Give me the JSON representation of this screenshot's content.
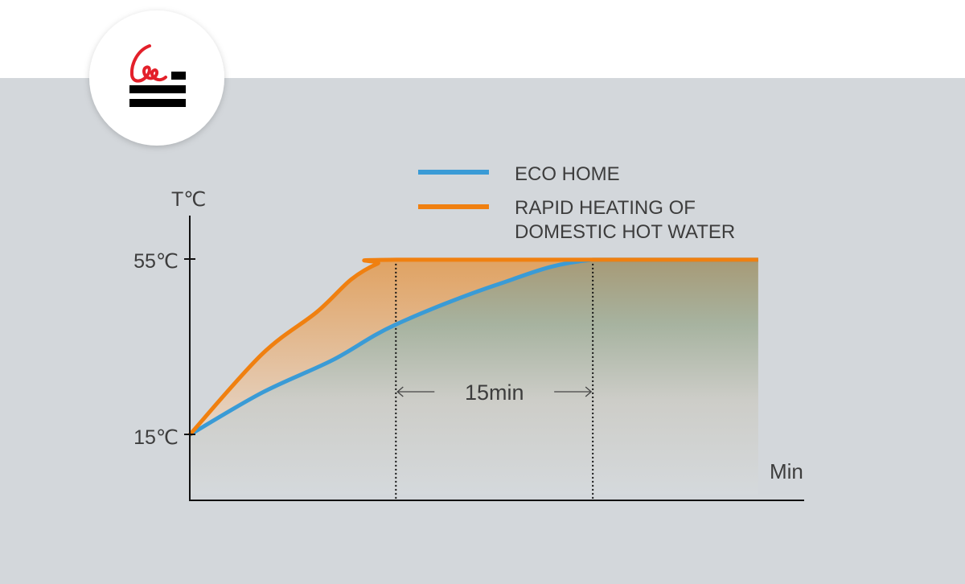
{
  "chart_data": {
    "type": "line",
    "xlabel": "Min",
    "ylabel": "T℃",
    "y_ticks": [
      "15℃",
      "55℃"
    ],
    "y_tick_values": [
      15,
      55
    ],
    "ylim": [
      0,
      57
    ],
    "xlim": [
      0,
      46.8
    ],
    "grid": false,
    "legend_position": "top-right",
    "series": [
      {
        "name": "ECO HOME",
        "color": "#3a9bd6",
        "points": [
          [
            0,
            15
          ],
          [
            5.5,
            24.6
          ],
          [
            10.9,
            32.1
          ],
          [
            15.7,
            40.2
          ],
          [
            23.5,
            49.4
          ],
          [
            30.7,
            55
          ],
          [
            43.3,
            55
          ]
        ]
      },
      {
        "name": "RAPID HEATING OF DOMESTIC HOT WATER",
        "name_lines": [
          "RAPID HEATING OF",
          "DOMESTIC HOT WATER"
        ],
        "color": "#f08010",
        "points": [
          [
            0,
            15
          ],
          [
            5.5,
            33.4
          ],
          [
            9.7,
            43.1
          ],
          [
            12.3,
            50.5
          ],
          [
            14.3,
            54.1
          ],
          [
            15.7,
            55
          ],
          [
            43.3,
            55
          ]
        ]
      }
    ],
    "annotation": {
      "text": "15min",
      "from_x": 15.7,
      "to_x": 30.7
    }
  },
  "logo": {
    "text": "Cle"
  }
}
